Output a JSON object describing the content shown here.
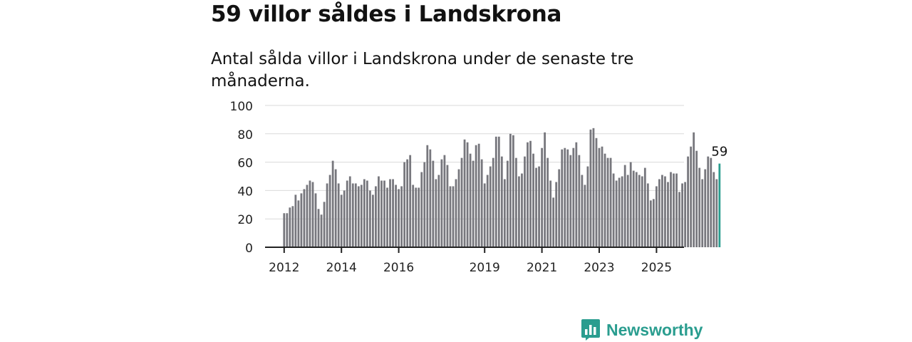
{
  "header": {
    "title": "59 villor såldes i Landskrona",
    "subtitle": "Antal sålda villor i Landskrona under de senaste tre månaderna."
  },
  "brand": {
    "name": "Newsworthy",
    "color": "#2a9d8f"
  },
  "chart_data": {
    "type": "bar",
    "title": "59 villor såldes i Landskrona",
    "subtitle": "Antal sålda villor i Landskrona under de senaste tre månaderna.",
    "xlabel": "",
    "ylabel": "",
    "ylim": [
      0,
      100
    ],
    "yticks": [
      0,
      20,
      40,
      60,
      80,
      100
    ],
    "xticks": [
      {
        "label": "2012",
        "index": 0
      },
      {
        "label": "2014",
        "index": 20
      },
      {
        "label": "2016",
        "index": 40
      },
      {
        "label": "2019",
        "index": 70
      },
      {
        "label": "2021",
        "index": 90
      },
      {
        "label": "2023",
        "index": 110
      },
      {
        "label": "2025",
        "index": 130
      }
    ],
    "grid": true,
    "bar_color": "#77777d",
    "highlight_color": "#2a9d8f",
    "highlight_label": "59",
    "values": [
      24,
      24,
      28,
      29,
      37,
      33,
      38,
      41,
      44,
      47,
      46,
      38,
      27,
      23,
      32,
      45,
      51,
      61,
      55,
      45,
      37,
      40,
      47,
      50,
      45,
      45,
      43,
      44,
      48,
      47,
      40,
      37,
      43,
      50,
      47,
      47,
      42,
      48,
      48,
      44,
      41,
      43,
      60,
      62,
      65,
      44,
      42,
      42,
      53,
      60,
      72,
      69,
      61,
      48,
      51,
      62,
      65,
      58,
      43,
      43,
      48,
      55,
      63,
      76,
      74,
      66,
      61,
      72,
      73,
      62,
      45,
      51,
      57,
      63,
      78,
      78,
      64,
      48,
      61,
      80,
      79,
      63,
      50,
      52,
      64,
      74,
      75,
      66,
      56,
      57,
      70,
      81,
      63,
      47,
      35,
      46,
      55,
      69,
      70,
      69,
      65,
      70,
      74,
      65,
      51,
      44,
      57,
      83,
      84,
      77,
      70,
      71,
      66,
      63,
      63,
      52,
      47,
      49,
      50,
      58,
      51,
      60,
      54,
      53,
      51,
      50,
      56,
      45,
      33,
      34,
      43,
      48,
      51,
      50,
      46,
      53,
      52,
      52,
      39,
      45,
      46,
      64,
      71,
      81,
      68,
      56,
      48,
      55,
      64,
      63,
      53,
      48,
      59
    ]
  }
}
